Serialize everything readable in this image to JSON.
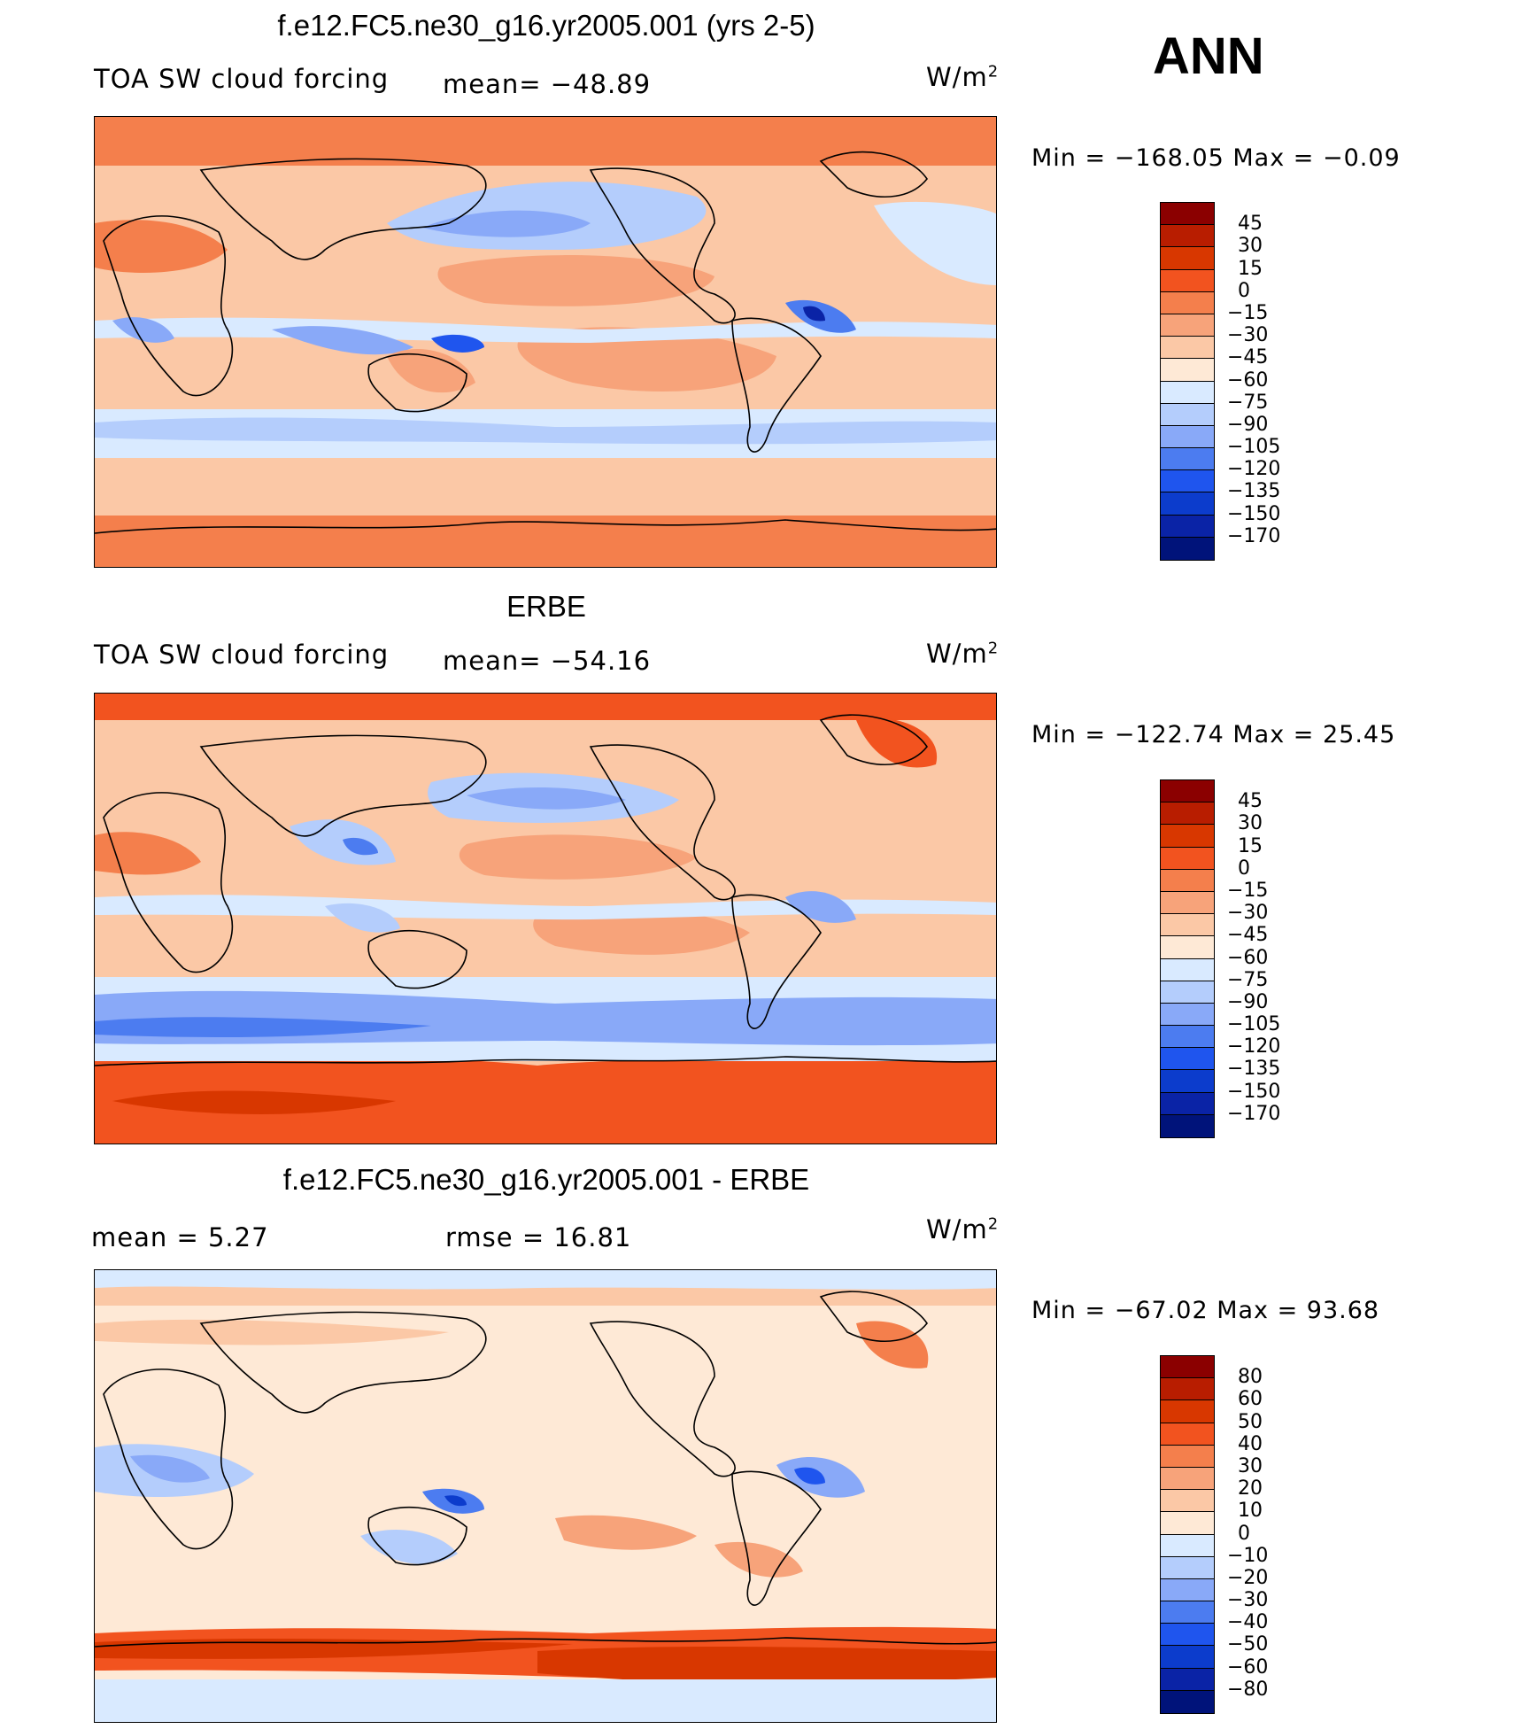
{
  "ann_label": "ANN",
  "unit": "W/m",
  "unit_sup": "2",
  "panels": [
    {
      "title": "f.e12.FC5.ne30_g16.yr2005.001 (yrs 2-5)",
      "left_text": "TOA SW cloud forcing",
      "middle_text": "mean= −48.89",
      "range_text": "Min  =  −168.05  Max  =    −0.09",
      "scale": "A"
    },
    {
      "title": "ERBE",
      "left_text": "TOA SW cloud forcing",
      "middle_text": "mean= −54.16",
      "range_text": "Min  =  −122.74  Max  =    25.45",
      "scale": "A"
    },
    {
      "title": "f.e12.FC5.ne30_g16.yr2005.001 - ERBE",
      "left_text": "mean  =      5.27",
      "middle_text": "rmse  =     16.81",
      "range_text": "Min  =  −67.02  Max  =    93.68",
      "scale": "B"
    }
  ],
  "colorbar_A": {
    "labels": [
      "45",
      "30",
      "15",
      "0",
      "−15",
      "−30",
      "−45",
      "−60",
      "−75",
      "−90",
      "−105",
      "−120",
      "−135",
      "−150",
      "−170"
    ],
    "colors": [
      "#8b0000",
      "#b81d00",
      "#d83700",
      "#f2531f",
      "#f47f4c",
      "#f7a37a",
      "#fbc8a6",
      "#fee9d6",
      "#d9eaff",
      "#b4cdfc",
      "#89a9f8",
      "#4c7cf0",
      "#1f55ee",
      "#0c3ccc",
      "#0a23a6",
      "#00137a"
    ]
  },
  "colorbar_B": {
    "labels": [
      "80",
      "60",
      "50",
      "40",
      "30",
      "20",
      "10",
      "0",
      "−10",
      "−20",
      "−30",
      "−40",
      "−50",
      "−60",
      "−80"
    ],
    "colors": [
      "#8b0000",
      "#b81d00",
      "#d83700",
      "#f2531f",
      "#f47f4c",
      "#f7a37a",
      "#fbc8a6",
      "#fee9d6",
      "#d9eaff",
      "#b4cdfc",
      "#89a9f8",
      "#4c7cf0",
      "#1f55ee",
      "#0c3ccc",
      "#0a23a6",
      "#00137a"
    ]
  },
  "chart_data": [
    {
      "type": "heatmap",
      "title": "f.e12.FC5.ne30_g16.yr2005.001 (yrs 2-5)",
      "variable": "TOA SW cloud forcing",
      "units": "W/m2",
      "mean": -48.89,
      "min": -168.05,
      "max": -0.09,
      "contour_levels": [
        -170,
        -150,
        -135,
        -120,
        -105,
        -90,
        -75,
        -60,
        -45,
        -30,
        -15,
        0,
        15,
        30,
        45
      ]
    },
    {
      "type": "heatmap",
      "title": "ERBE",
      "variable": "TOA SW cloud forcing",
      "units": "W/m2",
      "mean": -54.16,
      "min": -122.74,
      "max": 25.45,
      "contour_levels": [
        -170,
        -150,
        -135,
        -120,
        -105,
        -90,
        -75,
        -60,
        -45,
        -30,
        -15,
        0,
        15,
        30,
        45
      ]
    },
    {
      "type": "heatmap",
      "title": "f.e12.FC5.ne30_g16.yr2005.001 - ERBE",
      "units": "W/m2",
      "mean": 5.27,
      "rmse": 16.81,
      "min": -67.02,
      "max": 93.68,
      "contour_levels": [
        -80,
        -60,
        -50,
        -40,
        -30,
        -20,
        -10,
        0,
        10,
        20,
        30,
        40,
        50,
        60,
        80
      ]
    }
  ]
}
